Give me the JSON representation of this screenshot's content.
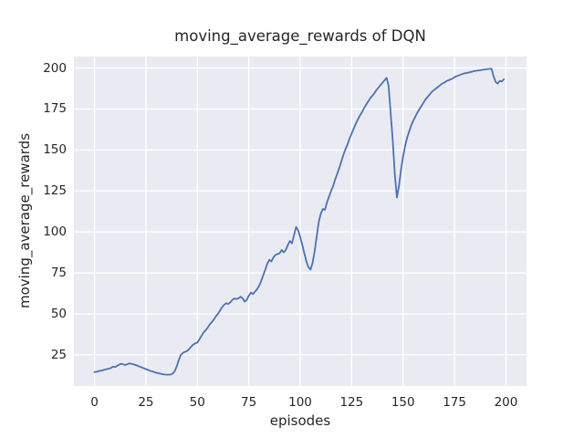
{
  "chart_data": {
    "type": "line",
    "title": "moving_average_rewards of DQN",
    "xlabel": "episodes",
    "ylabel": "moving_average_rewards",
    "x_start": 0,
    "x_step": 1,
    "values": [
      14.5,
      14.7,
      15.0,
      15.3,
      15.6,
      16.0,
      16.3,
      16.6,
      17.0,
      17.8,
      17.5,
      18.3,
      19.0,
      19.6,
      19.2,
      18.8,
      19.3,
      19.8,
      19.5,
      19.2,
      18.8,
      18.3,
      17.8,
      17.3,
      16.8,
      16.3,
      15.8,
      15.3,
      14.9,
      14.5,
      14.1,
      13.8,
      13.5,
      13.2,
      13.0,
      12.9,
      12.9,
      13.0,
      13.6,
      15.0,
      18.0,
      22.0,
      25.0,
      26.2,
      26.8,
      27.3,
      28.5,
      30.0,
      31.3,
      32.0,
      32.5,
      34.5,
      36.5,
      38.5,
      40.0,
      41.5,
      43.5,
      45.0,
      46.5,
      48.5,
      50.0,
      52.0,
      54.0,
      55.5,
      56.5,
      56.0,
      57.0,
      58.5,
      59.5,
      59.0,
      59.5,
      60.5,
      59.5,
      57.5,
      58.5,
      61.0,
      63.0,
      62.0,
      63.5,
      65.0,
      67.0,
      70.0,
      73.5,
      77.0,
      80.5,
      83.0,
      82.0,
      84.5,
      86.0,
      86.5,
      87.0,
      89.0,
      87.5,
      89.0,
      92.0,
      94.5,
      93.0,
      98.0,
      103.0,
      101.0,
      97.0,
      92.0,
      87.0,
      82.0,
      78.5,
      77.0,
      81.0,
      88.0,
      97.0,
      106.0,
      111.0,
      114.0,
      113.5,
      118.0,
      121.5,
      125.0,
      128.0,
      132.0,
      135.5,
      139.0,
      143.0,
      147.0,
      150.5,
      153.5,
      157.0,
      160.0,
      163.0,
      166.0,
      168.5,
      171.0,
      173.0,
      175.5,
      177.5,
      179.5,
      181.5,
      183.0,
      184.5,
      186.5,
      188.0,
      189.5,
      191.0,
      192.5,
      194.0,
      189.0,
      172.0,
      155.0,
      135.0,
      121.0,
      128.0,
      138.0,
      146.0,
      152.5,
      157.5,
      161.5,
      165.0,
      168.0,
      170.5,
      173.0,
      175.0,
      177.0,
      179.0,
      181.0,
      182.5,
      184.0,
      185.5,
      186.5,
      187.5,
      188.5,
      189.5,
      190.5,
      191.0,
      192.0,
      192.5,
      193.0,
      193.5,
      194.5,
      195.0,
      195.5,
      196.0,
      196.5,
      196.8,
      197.0,
      197.3,
      197.6,
      197.9,
      198.2,
      198.4,
      198.6,
      198.8,
      199.0,
      199.2,
      199.4,
      199.5,
      199.6,
      195.0,
      191.5,
      190.5,
      192.2,
      191.8,
      193.2
    ],
    "xlim": [
      -10,
      210
    ],
    "ylim": [
      6,
      207
    ],
    "xticks": [
      0,
      25,
      50,
      75,
      100,
      125,
      150,
      175,
      200
    ],
    "yticks": [
      25,
      50,
      75,
      100,
      125,
      150,
      175,
      200
    ],
    "grid": true,
    "legend": null,
    "style": {
      "line_color": "#4C72B0",
      "axes_background": "#EAEAF2",
      "grid_color": "#FFFFFF",
      "text_color": "#262626",
      "figure_background": "#FFFFFF"
    }
  }
}
